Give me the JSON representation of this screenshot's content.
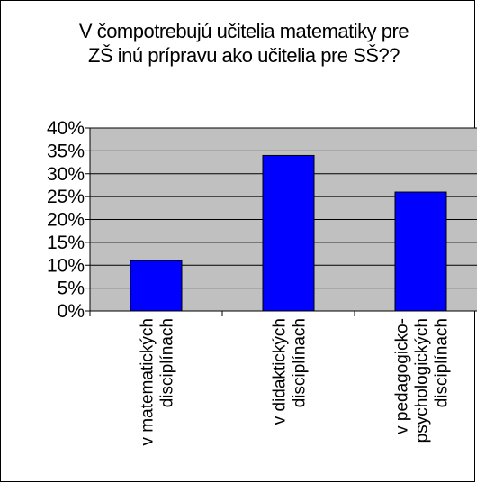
{
  "chart_data": {
    "type": "bar",
    "title_lines": [
      "V čompotrebujú učitelia matematiky pre",
      "ZŠ inú prípravu ako učitelia pre  SŠ??"
    ],
    "categories": [
      [
        "v matematických",
        "disciplínach"
      ],
      [
        "v didaktických",
        "disciplínach"
      ],
      [
        "v pedagogicko-",
        "psychologických",
        "disciplínach"
      ]
    ],
    "values": [
      11,
      34,
      26
    ],
    "ylim": [
      0,
      40
    ],
    "yticks": [
      0,
      5,
      10,
      15,
      20,
      25,
      30,
      35,
      40
    ],
    "ytick_labels": [
      "0%",
      "5%",
      "10%",
      "15%",
      "20%",
      "25%",
      "30%",
      "35%",
      "40%"
    ],
    "grid": true,
    "legend": "none",
    "colors": {
      "bar": "#0000ff",
      "plot_bg": "#c0c0c0",
      "grid": "#000000"
    }
  }
}
